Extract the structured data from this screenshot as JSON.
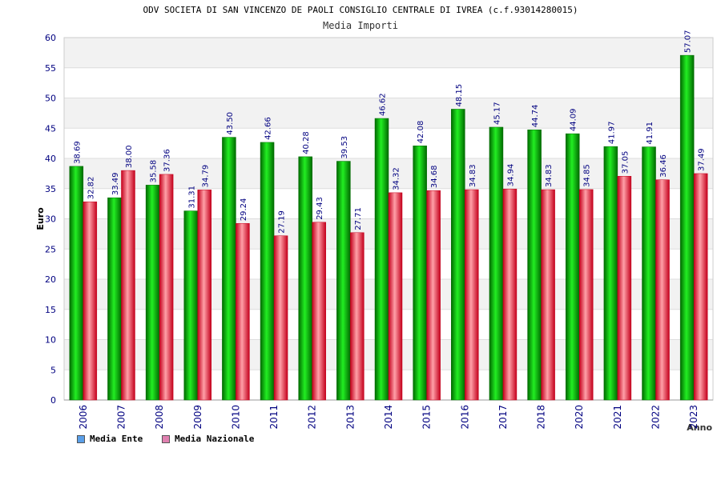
{
  "title": "ODV SOCIETA DI SAN VINCENZO DE PAOLI CONSIGLIO CENTRALE DI IVREA (c.f.93014280015)",
  "subtitle": "Media Importi",
  "legend": [
    {
      "label": "Media Ente",
      "color": "#5a9fe8"
    },
    {
      "label": "Media Nazionale",
      "color": "#e080b0"
    }
  ],
  "colors": {
    "ente_dark": "#006a00",
    "ente_light": "#22ee22",
    "naz_dark": "#c4001c",
    "naz_light": "#ffa0a8",
    "label": "#000080",
    "grid_band": "#f2f2f2"
  },
  "chart_data": {
    "type": "bar",
    "xlabel": "Anno",
    "ylabel": "Euro",
    "ylim": [
      0,
      60
    ],
    "yticks": [
      0,
      5,
      10,
      15,
      20,
      25,
      30,
      35,
      40,
      45,
      50,
      55,
      60
    ],
    "categories": [
      "2006",
      "2007",
      "2008",
      "2009",
      "2010",
      "2011",
      "2012",
      "2013",
      "2014",
      "2015",
      "2016",
      "2017",
      "2018",
      "2020",
      "2021",
      "2022",
      "2023"
    ],
    "series": [
      {
        "name": "Media Ente",
        "values": [
          38.69,
          33.49,
          35.58,
          31.31,
          43.5,
          42.66,
          40.28,
          39.53,
          46.62,
          42.08,
          48.15,
          45.17,
          44.74,
          44.09,
          41.97,
          41.91,
          57.07
        ],
        "labels": [
          "38.69",
          "33.49",
          "35.58",
          "31.31",
          "43.50",
          "42.66",
          "40.28",
          "39.53",
          "46.62",
          "42.08",
          "48.15",
          "45.17",
          "44.74",
          "44.09",
          "41.97",
          "41.91",
          "57.07"
        ]
      },
      {
        "name": "Media Nazionale",
        "values": [
          32.82,
          38.0,
          37.36,
          34.79,
          29.24,
          27.19,
          29.43,
          27.71,
          34.32,
          34.68,
          34.83,
          34.94,
          34.83,
          34.85,
          37.05,
          36.46,
          37.49
        ],
        "labels": [
          "32.82",
          "38.00",
          "37.36",
          "34.79",
          "29.24",
          "27.19",
          "29.43",
          "27.71",
          "34.32",
          "34.68",
          "34.83",
          "34.94",
          "34.83",
          "34.85",
          "37.05",
          "36.46",
          "37.49"
        ]
      }
    ]
  }
}
